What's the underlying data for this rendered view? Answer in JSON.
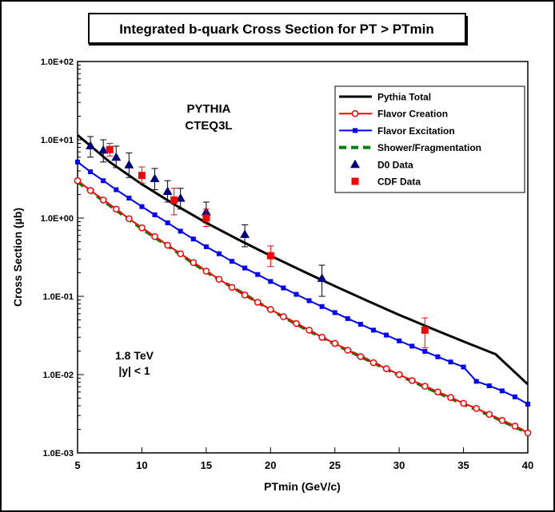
{
  "chart_data": {
    "type": "scatter",
    "title": "Integrated b-quark Cross Section for PT > PTmin",
    "xlabel": "PTmin  (GeV/c)",
    "ylabel": "Cross Section (µb)",
    "xlim": [
      5,
      40
    ],
    "ylim": [
      0.001,
      100
    ],
    "yscale": "log",
    "x_ticks": [
      "5",
      "10",
      "15",
      "20",
      "25",
      "30",
      "35",
      "40"
    ],
    "y_ticks": [
      "1.0E-03",
      "1.0E-02",
      "1.0E-01",
      "1.0E+00",
      "1.0E+01",
      "1.0E+02"
    ],
    "annotations": {
      "generator": "PYTHIA",
      "pdf": "CTEQ3L",
      "energy": "1.8 TeV",
      "rapidity": "|y| < 1"
    },
    "legend_position": "top-right",
    "series": [
      {
        "name": "Pythia Total",
        "kind": "line",
        "color": "#000000",
        "x": [
          5,
          7.5,
          10,
          12.5,
          15,
          17.5,
          20,
          22.5,
          25,
          27.5,
          30,
          32.5,
          35,
          37.5,
          40
        ],
        "y": [
          11.5,
          5.2,
          2.7,
          1.5,
          0.87,
          0.53,
          0.33,
          0.21,
          0.135,
          0.088,
          0.058,
          0.039,
          0.0265,
          0.0182,
          0.0075
        ]
      },
      {
        "name": "Flavor Creation",
        "kind": "line-open-circle",
        "color": "#ff0000",
        "x": [
          5,
          6,
          7,
          8,
          9,
          10,
          11,
          12,
          13,
          14,
          15,
          16,
          17,
          18,
          19,
          20,
          21,
          22,
          23,
          24,
          25,
          26,
          27,
          28,
          29,
          30,
          31,
          32,
          33,
          34,
          35,
          36,
          37,
          38,
          39,
          40
        ],
        "y": [
          3.0,
          2.25,
          1.7,
          1.3,
          0.98,
          0.75,
          0.58,
          0.45,
          0.35,
          0.27,
          0.21,
          0.165,
          0.13,
          0.104,
          0.084,
          0.068,
          0.055,
          0.045,
          0.037,
          0.03,
          0.025,
          0.0205,
          0.017,
          0.0142,
          0.0119,
          0.01,
          0.0084,
          0.0071,
          0.006,
          0.0051,
          0.0043,
          0.0037,
          0.0031,
          0.0026,
          0.0022,
          0.0018
        ]
      },
      {
        "name": "Flavor Excitation",
        "kind": "line-square",
        "color": "#0000ff",
        "x": [
          5,
          6,
          7,
          8,
          9,
          10,
          11,
          12,
          13,
          14,
          15,
          16,
          17,
          18,
          19,
          20,
          21,
          22,
          23,
          24,
          25,
          26,
          27,
          28,
          29,
          30,
          31,
          32,
          33,
          34,
          35,
          36,
          37,
          38,
          39,
          40
        ],
        "y": [
          5.2,
          3.9,
          3.0,
          2.3,
          1.8,
          1.4,
          1.1,
          0.87,
          0.68,
          0.54,
          0.43,
          0.35,
          0.28,
          0.23,
          0.19,
          0.155,
          0.128,
          0.106,
          0.088,
          0.074,
          0.062,
          0.052,
          0.044,
          0.037,
          0.032,
          0.027,
          0.0231,
          0.0198,
          0.0169,
          0.0145,
          0.0125,
          0.0082,
          0.0072,
          0.0062,
          0.0052,
          0.0042
        ]
      },
      {
        "name": "Shower/Fragmentation",
        "kind": "dashed-line",
        "color": "#008000",
        "x": [
          5,
          7.5,
          10,
          12.5,
          15,
          17.5,
          20,
          22.5,
          25,
          27.5,
          30,
          32.5,
          35,
          37.5,
          40
        ],
        "y": [
          2.9,
          1.45,
          0.73,
          0.39,
          0.205,
          0.118,
          0.067,
          0.04,
          0.0245,
          0.0155,
          0.0098,
          0.0064,
          0.0042,
          0.0028,
          0.0018
        ]
      },
      {
        "name": "D0 Data",
        "kind": "points-triangle",
        "color": "#000080",
        "x": [
          6,
          7,
          8,
          9,
          11,
          12,
          13,
          15,
          18,
          24
        ],
        "y": [
          8.4,
          7.4,
          6.0,
          4.8,
          3.2,
          2.2,
          1.8,
          1.2,
          0.62,
          0.17
        ],
        "y_low": [
          6.0,
          5.2,
          4.4,
          3.3,
          2.3,
          1.6,
          1.3,
          0.87,
          0.43,
          0.1
        ],
        "y_high": [
          11.0,
          10.0,
          8.3,
          6.8,
          4.3,
          3.0,
          2.4,
          1.6,
          0.82,
          0.25
        ]
      },
      {
        "name": "CDF Data",
        "kind": "points-square",
        "color": "#ff0000",
        "x": [
          7.5,
          10,
          12.5,
          15,
          20,
          32
        ],
        "y": [
          7.5,
          3.5,
          1.7,
          1.0,
          0.33,
          0.037
        ],
        "y_low": [
          6.2,
          2.8,
          1.1,
          0.78,
          0.24,
          0.022
        ],
        "y_high": [
          9.0,
          4.5,
          2.4,
          1.3,
          0.44,
          0.053
        ]
      }
    ]
  }
}
